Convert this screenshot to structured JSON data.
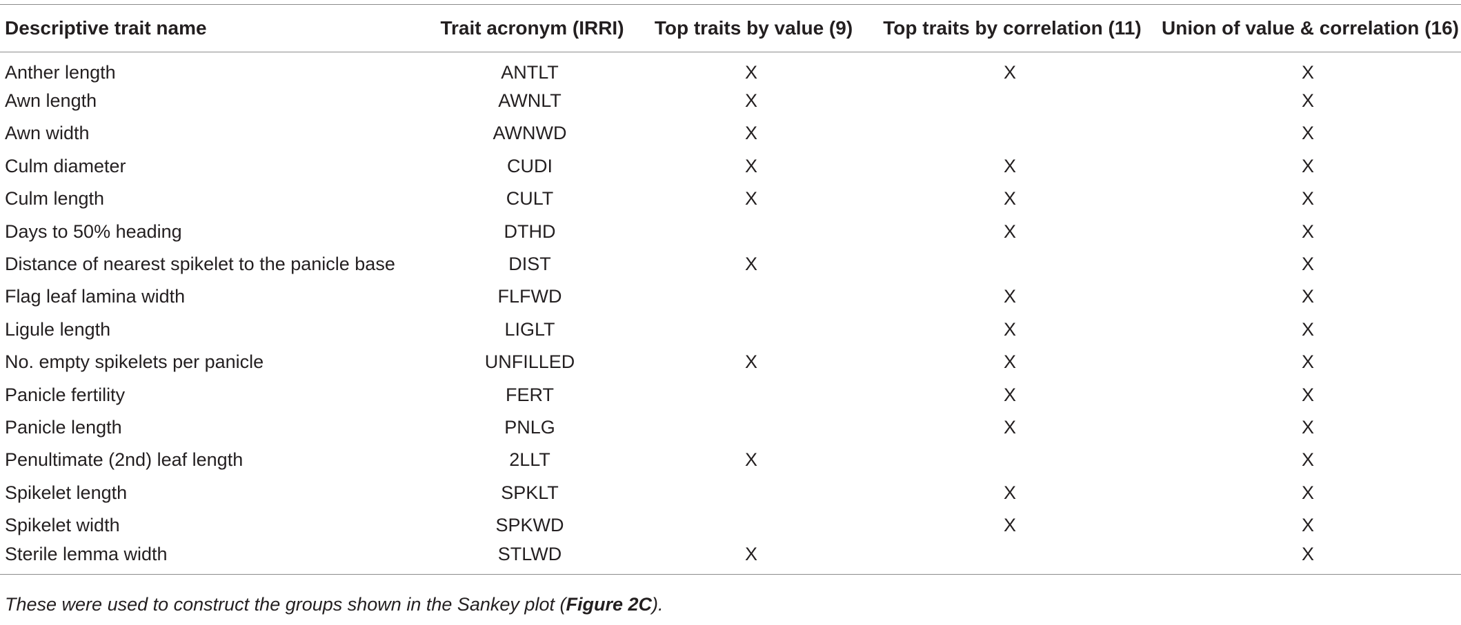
{
  "table": {
    "headers": [
      "Descriptive trait name",
      "Trait acronym (IRRI)",
      "Top traits by value (9)",
      "Top traits by correlation (11)",
      "Union of value & correlation (16)"
    ],
    "rows": [
      [
        "Anther length",
        "ANTLT",
        "X",
        "X",
        "X"
      ],
      [
        "Awn length",
        "AWNLT",
        "X",
        "",
        "X"
      ],
      [
        "Awn width",
        "AWNWD",
        "X",
        "",
        "X"
      ],
      [
        "Culm diameter",
        "CUDI",
        "X",
        "X",
        "X"
      ],
      [
        "Culm length",
        "CULT",
        "X",
        "X",
        "X"
      ],
      [
        "Days to 50% heading",
        "DTHD",
        "",
        "X",
        "X"
      ],
      [
        "Distance of nearest spikelet to the panicle base",
        "DIST",
        "X",
        "",
        "X"
      ],
      [
        "Flag leaf lamina width",
        "FLFWD",
        "",
        "X",
        "X"
      ],
      [
        "Ligule length",
        "LIGLT",
        "",
        "X",
        "X"
      ],
      [
        "No. empty spikelets per panicle",
        "UNFILLED",
        "X",
        "X",
        "X"
      ],
      [
        "Panicle fertility",
        "FERT",
        "",
        "X",
        "X"
      ],
      [
        "Panicle length",
        "PNLG",
        "",
        "X",
        "X"
      ],
      [
        "Penultimate (2nd) leaf length",
        "2LLT",
        "X",
        "",
        "X"
      ],
      [
        "Spikelet length",
        "SPKLT",
        "",
        "X",
        "X"
      ],
      [
        "Spikelet width",
        "SPKWD",
        "",
        "X",
        "X"
      ],
      [
        "Sterile lemma width",
        "STLWD",
        "X",
        "",
        "X"
      ]
    ]
  },
  "footnote": {
    "before": "These were used to construct the groups shown in the Sankey plot (",
    "figure_ref": "Figure 2C",
    "after": ")."
  }
}
